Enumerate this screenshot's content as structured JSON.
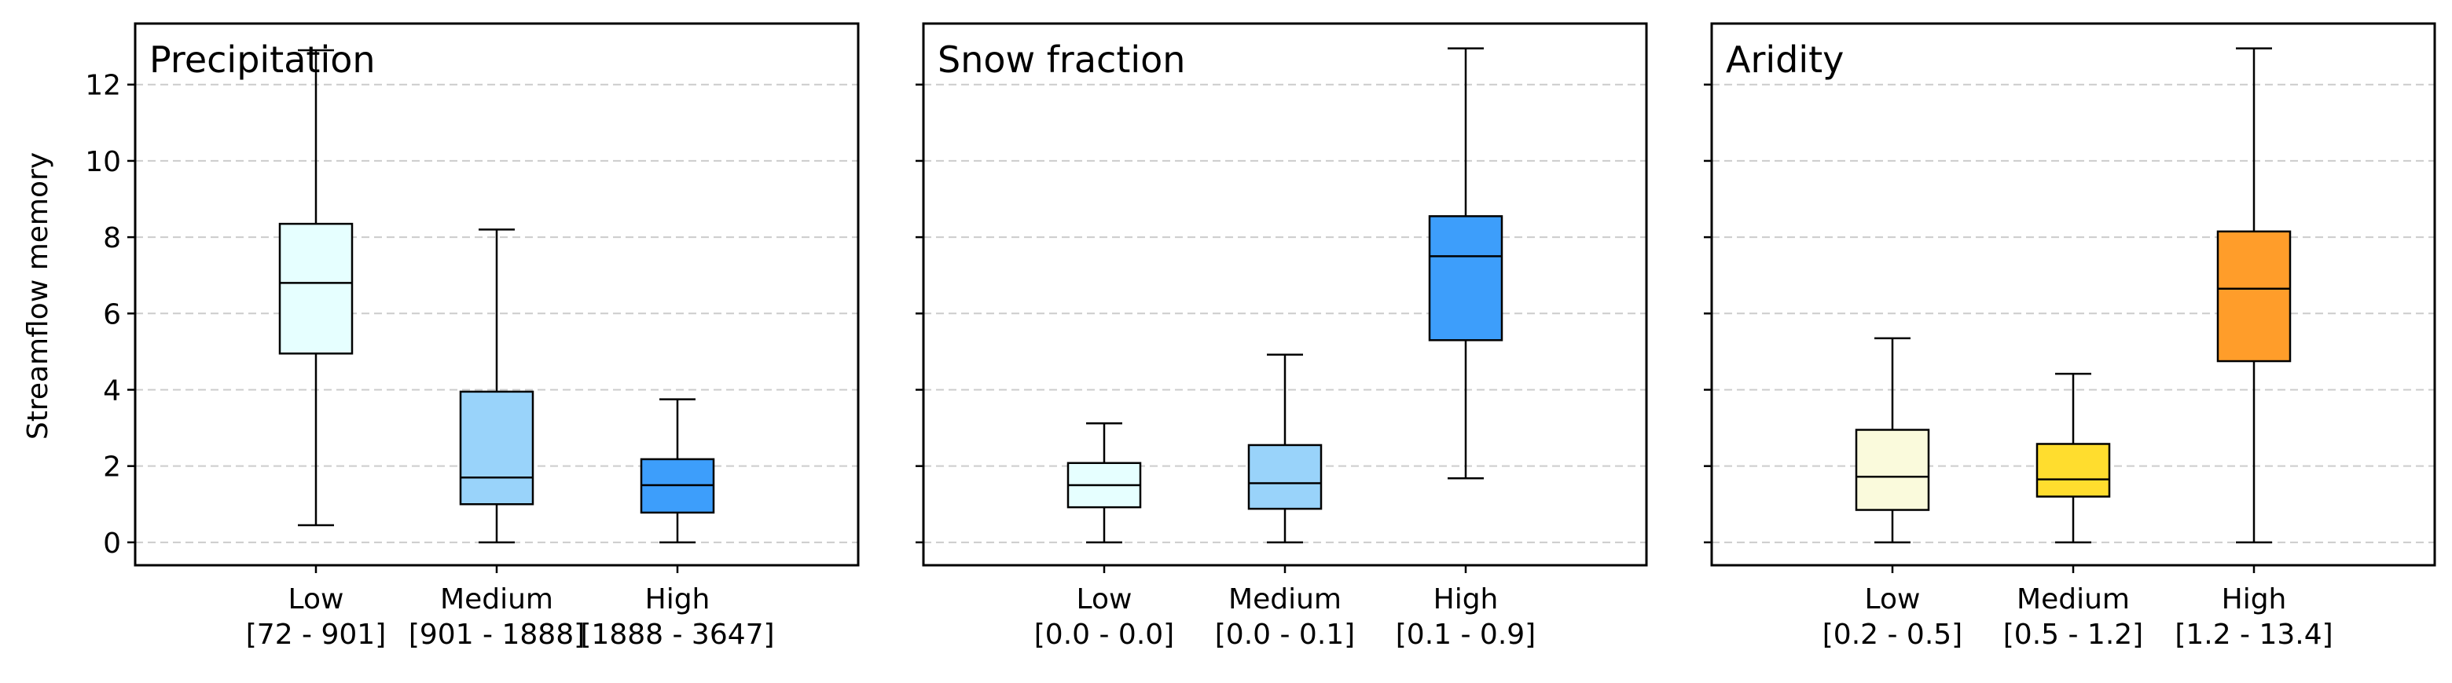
{
  "chart_data": {
    "type": "box",
    "ylabel": "Streamflow memory",
    "ylim": [
      -0.6,
      13.6
    ],
    "yticks": [
      0,
      2,
      4,
      6,
      8,
      10,
      12
    ],
    "grid": "y-dashed",
    "panels": [
      {
        "title": "Precipitation",
        "categories": [
          {
            "label": "Low",
            "range": "[72 - 901]",
            "color": "#e6ffff",
            "min": 0.45,
            "q1": 4.95,
            "median": 6.8,
            "q3": 8.35,
            "max": 12.9
          },
          {
            "label": "Medium",
            "range": "[901 - 1888]",
            "color": "#99d3fa",
            "min": 0.0,
            "q1": 1.0,
            "median": 1.7,
            "q3": 3.95,
            "max": 8.2
          },
          {
            "label": "High",
            "range": "[1888 - 3647]",
            "color": "#3d9efb",
            "min": 0.0,
            "q1": 0.78,
            "median": 1.5,
            "q3": 2.18,
            "max": 3.75
          }
        ]
      },
      {
        "title": "Snow fraction",
        "categories": [
          {
            "label": "Low",
            "range": "[0.0 - 0.0]",
            "color": "#e6ffff",
            "min": 0.0,
            "q1": 0.92,
            "median": 1.5,
            "q3": 2.08,
            "max": 3.12
          },
          {
            "label": "Medium",
            "range": "[0.0 - 0.1]",
            "color": "#99d3fa",
            "min": 0.0,
            "q1": 0.88,
            "median": 1.55,
            "q3": 2.55,
            "max": 4.92
          },
          {
            "label": "High",
            "range": "[0.1 - 0.9]",
            "color": "#3d9efb",
            "min": 1.68,
            "q1": 5.3,
            "median": 7.5,
            "q3": 8.55,
            "max": 12.95
          }
        ]
      },
      {
        "title": "Aridity",
        "categories": [
          {
            "label": "Low",
            "range": "[0.2 - 0.5]",
            "color": "#fafadc",
            "min": 0.0,
            "q1": 0.85,
            "median": 1.72,
            "q3": 2.95,
            "max": 5.35
          },
          {
            "label": "Medium",
            "range": "[0.5 - 1.2]",
            "color": "#ffdd2e",
            "min": 0.0,
            "q1": 1.2,
            "median": 1.65,
            "q3": 2.58,
            "max": 4.42
          },
          {
            "label": "High",
            "range": "[1.2 - 13.4]",
            "color": "#ff9d2a",
            "min": 0.0,
            "q1": 4.75,
            "median": 6.65,
            "q3": 8.15,
            "max": 12.95
          }
        ]
      }
    ]
  }
}
